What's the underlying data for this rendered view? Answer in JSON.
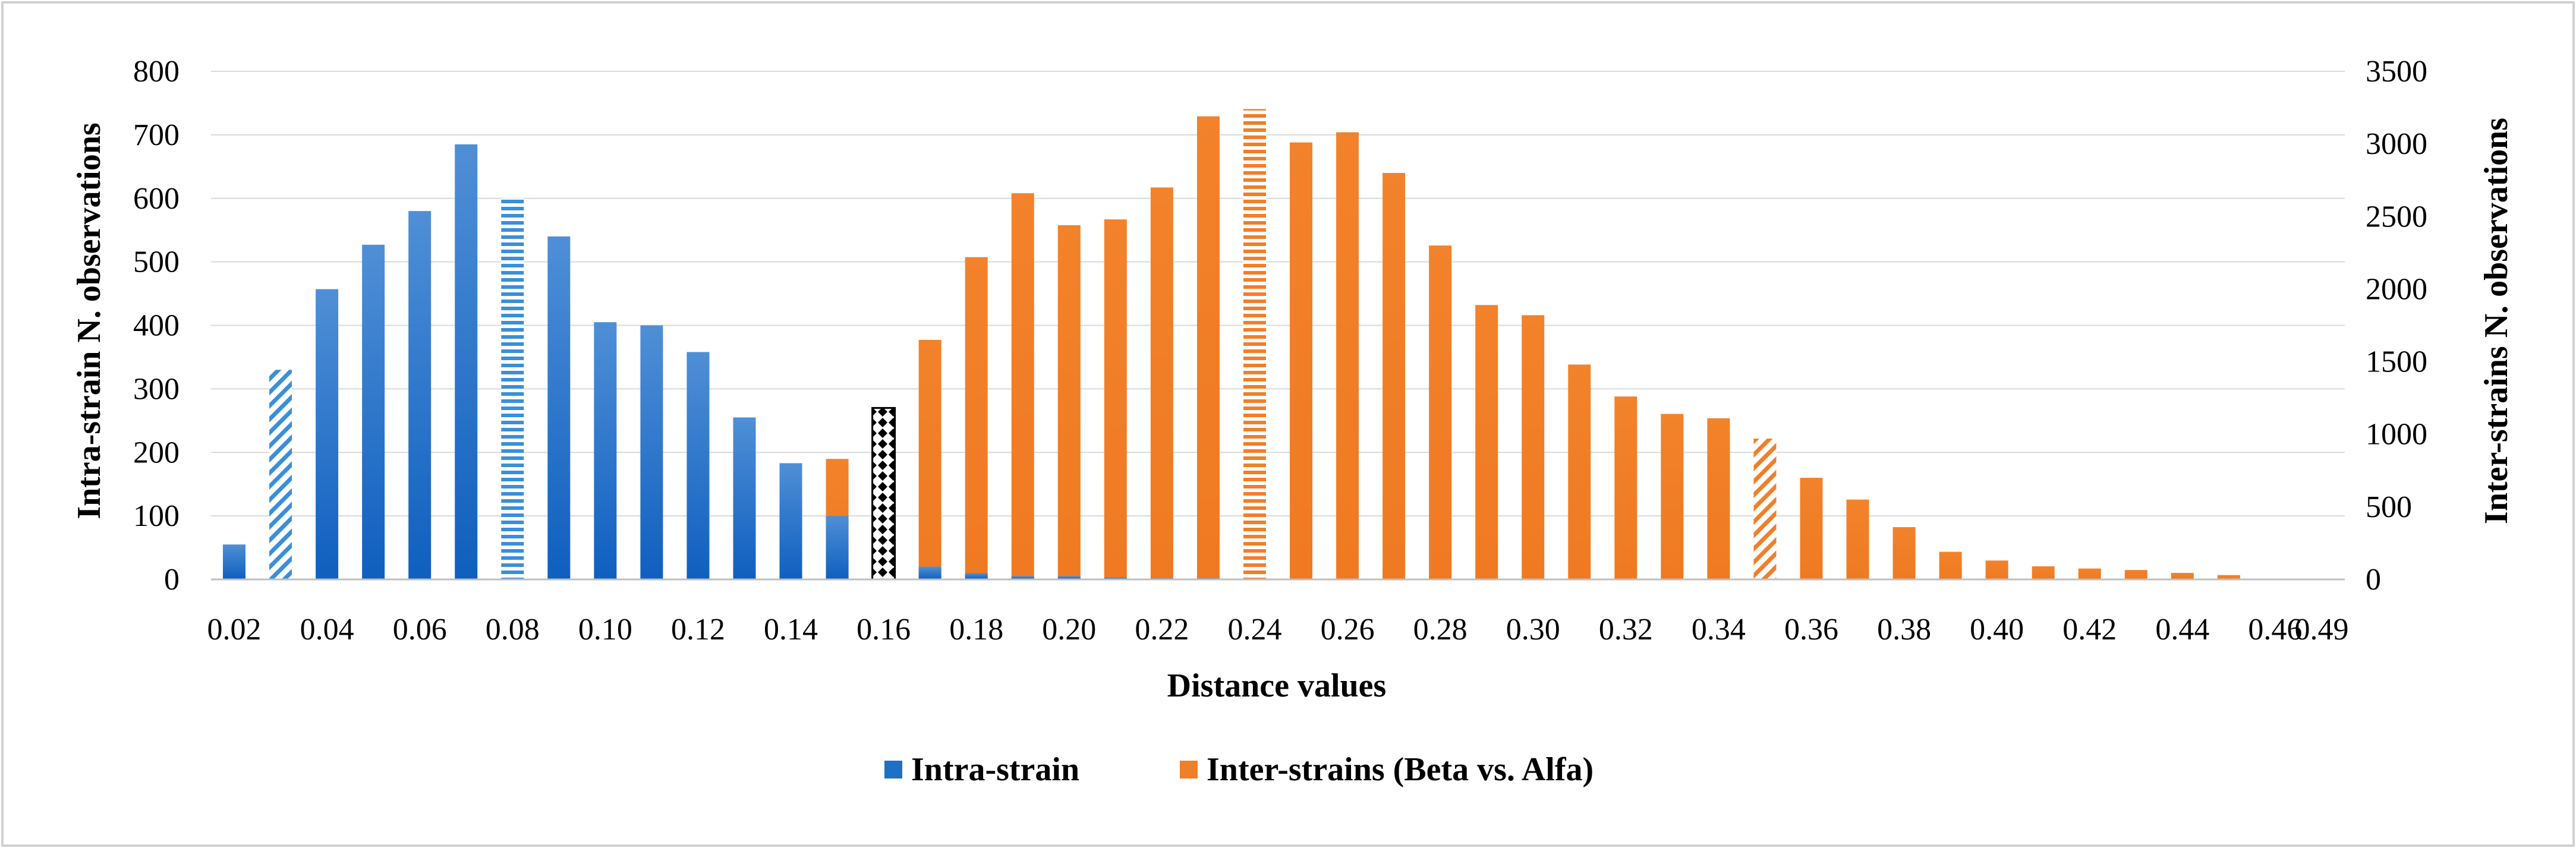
{
  "chart_data": {
    "type": "bar",
    "title": "",
    "xlabel": "Distance values",
    "ylabel_left": "Intra-strain  N. observations",
    "ylabel_right": "Inter-strains N. observations",
    "ylim_left": [
      0,
      800
    ],
    "ylim_right": [
      0,
      3500
    ],
    "yticks_left": [
      "0",
      "100",
      "200",
      "300",
      "400",
      "500",
      "600",
      "700",
      "800"
    ],
    "yticks_right": [
      "0",
      "500",
      "1000",
      "1500",
      "2000",
      "2500",
      "3000",
      "3500"
    ],
    "categories": [
      "0.02",
      "0.03",
      "0.04",
      "0.05",
      "0.06",
      "0.07",
      "0.08",
      "0.09",
      "0.10",
      "0.11",
      "0.12",
      "0.13",
      "0.14",
      "0.15",
      "0.16",
      "0.17",
      "0.18",
      "0.19",
      "0.20",
      "0.21",
      "0.22",
      "0.23",
      "0.24",
      "0.25",
      "0.26",
      "0.27",
      "0.28",
      "0.29",
      "0.30",
      "0.31",
      "0.32",
      "0.33",
      "0.34",
      "0.35",
      "0.36",
      "0.37",
      "0.38",
      "0.39",
      "0.40",
      "0.41",
      "0.42",
      "0.43",
      "0.44",
      "0.45",
      "0.46",
      "0.49"
    ],
    "category_labels": [
      "0.02",
      "",
      "0.04",
      "",
      "0.06",
      "",
      "0.08",
      "",
      "0.10",
      "",
      "0.12",
      "",
      "0.14",
      "",
      "0.16",
      "",
      "0.18",
      "",
      "0.20",
      "",
      "0.22",
      "",
      "0.24",
      "",
      "0.26",
      "",
      "0.28",
      "",
      "0.30",
      "",
      "0.32",
      "",
      "0.34",
      "",
      "0.36",
      "",
      "0.38",
      "",
      "0.40",
      "",
      "0.42",
      "",
      "0.44",
      "",
      "0.46",
      "0.49"
    ],
    "grid": true,
    "legend_position": "bottom",
    "series": [
      {
        "name": "Intra-strain",
        "axis": "left",
        "color": "#1f6fc5",
        "values": [
          55,
          330,
          457,
          527,
          580,
          685,
          600,
          540,
          405,
          400,
          358,
          255,
          183,
          100,
          270,
          20,
          10,
          5,
          5,
          3,
          2,
          2,
          1,
          1,
          0,
          0,
          0,
          0,
          0,
          0,
          0,
          0,
          0,
          0,
          0,
          0,
          0,
          0,
          0,
          0,
          0,
          0,
          0,
          0,
          0,
          0
        ],
        "highlights": {
          "0.03": "diagonal-stripes",
          "0.08": "horizontal-stripes",
          "0.16": "diamond-pattern"
        }
      },
      {
        "name": "Inter-strains (Beta vs. Alfa)",
        "axis": "right",
        "color": "#f07f2a",
        "values": [
          0,
          0,
          0,
          0,
          0,
          0,
          0,
          0,
          0,
          5,
          50,
          300,
          540,
          830,
          0,
          1650,
          2220,
          2660,
          2440,
          2480,
          2700,
          3190,
          3240,
          3010,
          3080,
          2800,
          2300,
          1890,
          1820,
          1480,
          1260,
          1140,
          1110,
          970,
          700,
          550,
          360,
          190,
          130,
          90,
          75,
          65,
          45,
          30,
          0,
          0
        ],
        "highlights": {
          "0.24": "horizontal-stripes",
          "0.35": "diagonal-stripes"
        }
      }
    ]
  },
  "colors": {
    "intra": "#1f6fc5",
    "intra_light": "#4a90d9",
    "inter": "#f07f2a",
    "grid": "#d9d9d9",
    "frame": "#d0d0d0"
  }
}
